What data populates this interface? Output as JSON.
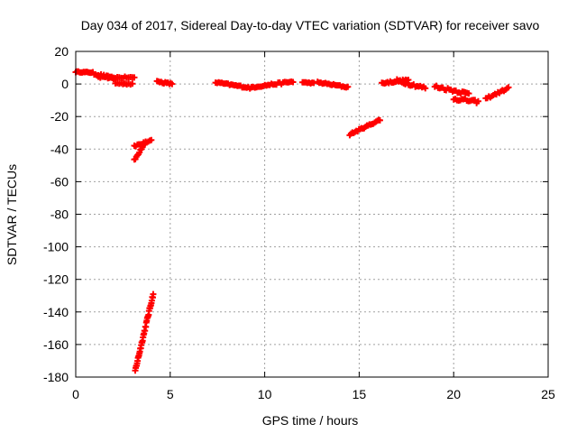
{
  "chart_data": {
    "type": "scatter",
    "title": "Day 034 of 2017, Sidereal Day-to-day VTEC variation (SDTVAR) for receiver savo",
    "xlabel": "GPS time / hours",
    "ylabel": "SDTVAR / TECUs",
    "xlim": [
      0,
      25
    ],
    "ylim": [
      -180,
      20
    ],
    "xticks": [
      0,
      5,
      10,
      15,
      20,
      25
    ],
    "yticks": [
      20,
      0,
      -20,
      -40,
      -60,
      -80,
      -100,
      -120,
      -140,
      -160,
      -180
    ],
    "grid": true,
    "marker": "+",
    "color": "#ff0000",
    "series": [
      {
        "name": "seg1",
        "x0": 0.0,
        "y0": 7.5,
        "x1": 0.9,
        "y1": 7.0,
        "n": 14,
        "scatter": 0.6
      },
      {
        "name": "seg2",
        "x0": 0.9,
        "y0": 6.5,
        "x1": 2.0,
        "y1": 3.5,
        "n": 16,
        "scatter": 1.5
      },
      {
        "name": "seg3",
        "x0": 1.2,
        "y0": 4.0,
        "x1": 3.1,
        "y1": 4.0,
        "n": 20,
        "scatter": 1.0
      },
      {
        "name": "seg4",
        "x0": 2.1,
        "y0": 0.5,
        "x1": 3.0,
        "y1": 0.0,
        "n": 10,
        "scatter": 1.0
      },
      {
        "name": "seg5",
        "x0": 3.1,
        "y0": -47,
        "x1": 3.7,
        "y1": -35,
        "n": 12,
        "scatter": 1.5
      },
      {
        "name": "seg6",
        "x0": 3.1,
        "y0": -38,
        "x1": 4.0,
        "y1": -35,
        "n": 12,
        "scatter": 1.2
      },
      {
        "name": "seg7",
        "x0": 3.15,
        "y0": -176,
        "x1": 4.1,
        "y1": -129,
        "n": 40,
        "scatter": 2.0
      },
      {
        "name": "seg8",
        "x0": 4.3,
        "y0": 1.5,
        "x1": 5.1,
        "y1": 0.0,
        "n": 12,
        "scatter": 1.0
      },
      {
        "name": "seg9",
        "x0": 7.4,
        "y0": 1.0,
        "x1": 9.3,
        "y1": -2.5,
        "n": 24,
        "scatter": 1.0
      },
      {
        "name": "seg10",
        "x0": 9.3,
        "y0": -2.0,
        "x1": 11.5,
        "y1": 1.5,
        "n": 26,
        "scatter": 1.2
      },
      {
        "name": "seg11",
        "x0": 12.0,
        "y0": 1.0,
        "x1": 12.6,
        "y1": 0.5,
        "n": 8,
        "scatter": 0.6
      },
      {
        "name": "seg12",
        "x0": 12.8,
        "y0": 1.0,
        "x1": 14.4,
        "y1": -2.0,
        "n": 20,
        "scatter": 1.0
      },
      {
        "name": "seg13",
        "x0": 14.5,
        "y0": -31,
        "x1": 16.1,
        "y1": -22,
        "n": 24,
        "scatter": 1.0
      },
      {
        "name": "seg14",
        "x0": 16.2,
        "y0": 0.5,
        "x1": 17.6,
        "y1": 2.5,
        "n": 20,
        "scatter": 1.2
      },
      {
        "name": "seg15",
        "x0": 17.0,
        "y0": 2.0,
        "x1": 18.5,
        "y1": -2.5,
        "n": 18,
        "scatter": 1.8
      },
      {
        "name": "seg16",
        "x0": 19.0,
        "y0": -1.5,
        "x1": 20.8,
        "y1": -6.0,
        "n": 22,
        "scatter": 1.8
      },
      {
        "name": "seg17",
        "x0": 20.0,
        "y0": -9.0,
        "x1": 21.3,
        "y1": -11.0,
        "n": 16,
        "scatter": 1.8
      },
      {
        "name": "seg18",
        "x0": 21.7,
        "y0": -9.0,
        "x1": 22.9,
        "y1": -2.5,
        "n": 16,
        "scatter": 1.2
      }
    ]
  }
}
